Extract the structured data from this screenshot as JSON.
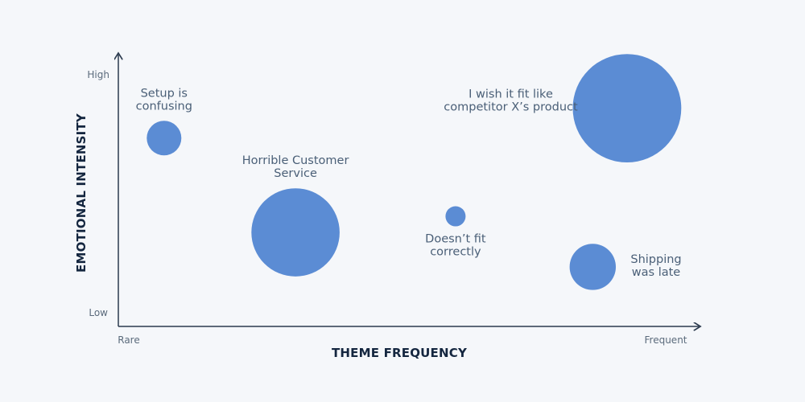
{
  "chart_data": {
    "type": "bubble",
    "title": "",
    "xlabel": "THEME FREQUENCY",
    "ylabel": "EMOTIONAL INTENSITY",
    "x_ticks": {
      "low": "Rare",
      "high": "Frequent"
    },
    "y_ticks": {
      "low": "Low",
      "high": "High"
    },
    "xlim": [
      0,
      1
    ],
    "ylim": [
      0,
      1
    ],
    "grid": false,
    "bubble_color": "#5b8cd4",
    "points": [
      {
        "label": [
          "Setup is",
          "confusing"
        ],
        "x": 0.08,
        "y": 0.77,
        "size": 0.15,
        "label_pos": "above"
      },
      {
        "label": [
          "Horrible Customer",
          "Service"
        ],
        "x": 0.31,
        "y": 0.36,
        "size": 0.52,
        "label_pos": "above"
      },
      {
        "label": [
          "Doesn’t fit",
          "correctly"
        ],
        "x": 0.59,
        "y": 0.43,
        "size": 0.05,
        "label_pos": "below"
      },
      {
        "label": [
          "I wish it fit like",
          "competitor X’s product"
        ],
        "x": 0.89,
        "y": 0.9,
        "size": 0.66,
        "label_pos": "left"
      },
      {
        "label": [
          "Shipping",
          "was late"
        ],
        "x": 0.83,
        "y": 0.21,
        "size": 0.23,
        "label_pos": "right"
      }
    ]
  }
}
